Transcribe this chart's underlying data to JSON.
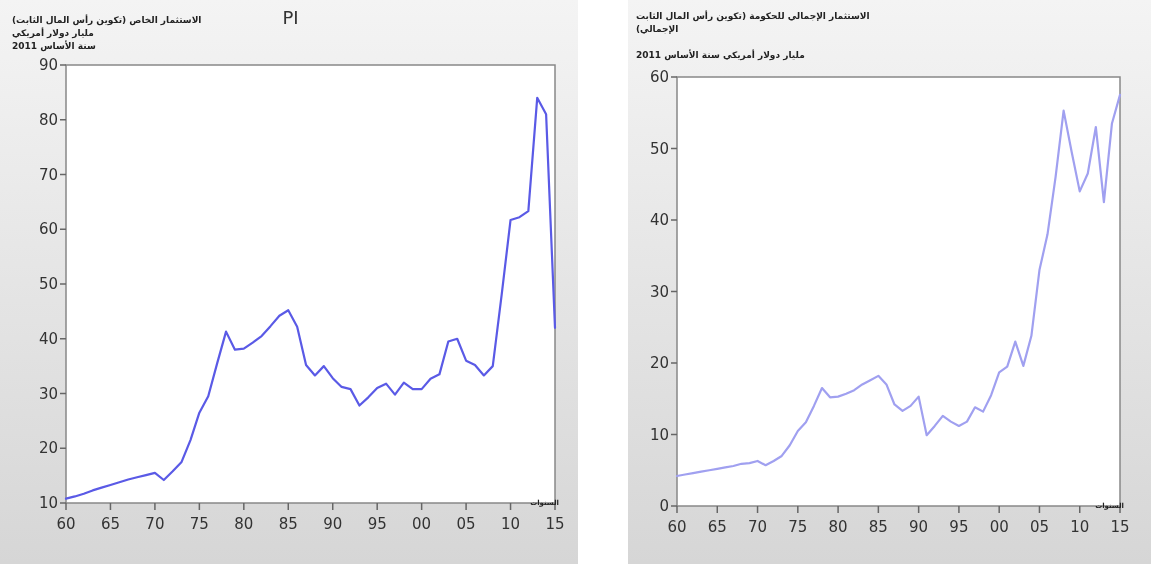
{
  "chart_data": [
    {
      "type": "line",
      "title": "PI",
      "ylabel": "الاستثمار الخاص (تكوين رأس المال الثابت)\nمليار دولار أمريكي\nسنة الأساس 2011",
      "xlabel": "السنوات",
      "x": [
        1960,
        1961,
        1962,
        1963,
        1964,
        1965,
        1966,
        1967,
        1968,
        1969,
        1970,
        1971,
        1972,
        1973,
        1974,
        1975,
        1976,
        1977,
        1978,
        1979,
        1980,
        1981,
        1982,
        1983,
        1984,
        1985,
        1986,
        1987,
        1988,
        1989,
        1990,
        1991,
        1992,
        1993,
        1994,
        1995,
        1996,
        1997,
        1998,
        1999,
        2000,
        2001,
        2002,
        2003,
        2004,
        2005,
        2006,
        2007,
        2008,
        2009,
        2010,
        2011,
        2012,
        2013,
        2014,
        2015
      ],
      "series": [
        {
          "color": "#5a5ae6",
          "values": [
            10.8,
            11.2,
            11.7,
            12.3,
            12.8,
            13.3,
            13.8,
            14.3,
            14.7,
            15.1,
            15.5,
            14.2,
            15.8,
            17.5,
            21.5,
            26.5,
            29.5,
            35.5,
            41.3,
            38,
            38.2,
            39.3,
            40.5,
            42.3,
            44.2,
            45.2,
            42.2,
            35.2,
            33.3,
            35,
            32.8,
            31.2,
            30.8,
            27.8,
            29.3,
            31,
            31.8,
            29.8,
            32,
            30.8,
            30.8,
            32.7,
            33.5,
            39.5,
            40,
            36,
            35.2,
            33.3,
            35,
            48,
            61.7,
            62.2,
            63.3,
            84,
            81,
            42
          ]
        }
      ],
      "xlim": [
        1960,
        2015
      ],
      "xticks": [
        {
          "value": 1960,
          "label": "60"
        },
        {
          "value": 1965,
          "label": "65"
        },
        {
          "value": 1970,
          "label": "70"
        },
        {
          "value": 1975,
          "label": "75"
        },
        {
          "value": 1980,
          "label": "80"
        },
        {
          "value": 1985,
          "label": "85"
        },
        {
          "value": 1990,
          "label": "90"
        },
        {
          "value": 1995,
          "label": "95"
        },
        {
          "value": 2000,
          "label": "00"
        },
        {
          "value": 2005,
          "label": "05"
        },
        {
          "value": 2010,
          "label": "10"
        },
        {
          "value": 2015,
          "label": "15"
        }
      ],
      "ylim": [
        10,
        90
      ],
      "yticks": [
        10,
        20,
        30,
        40,
        50,
        60,
        70,
        80,
        90
      ]
    },
    {
      "type": "line",
      "ylabel": "الاستثمار الإجمالي للحكومة (تكوين رأس المال الثابت\nالإجمالي)\n\nمليار دولار أمريكي سنة الأساس 2011",
      "xlabel": "السنوات",
      "x": [
        1960,
        1961,
        1962,
        1963,
        1964,
        1965,
        1966,
        1967,
        1968,
        1969,
        1970,
        1971,
        1972,
        1973,
        1974,
        1975,
        1976,
        1977,
        1978,
        1979,
        1980,
        1981,
        1982,
        1983,
        1984,
        1985,
        1986,
        1987,
        1988,
        1989,
        1990,
        1991,
        1992,
        1993,
        1994,
        1995,
        1996,
        1997,
        1998,
        1999,
        2000,
        2001,
        2002,
        2003,
        2004,
        2005,
        2006,
        2007,
        2008,
        2009,
        2010,
        2011,
        2012,
        2013,
        2014,
        2015
      ],
      "series": [
        {
          "color": "#a0a0f0",
          "values": [
            4.2,
            4.4,
            4.6,
            4.8,
            5,
            5.2,
            5.4,
            5.6,
            5.9,
            6,
            6.3,
            5.7,
            6.3,
            7,
            8.5,
            10.5,
            11.7,
            14,
            16.5,
            15.2,
            15.3,
            15.7,
            16.2,
            17,
            17.6,
            18.2,
            17,
            14.2,
            13.3,
            14,
            15.3,
            9.9,
            11.2,
            12.6,
            11.8,
            11.2,
            11.8,
            13.8,
            13.2,
            15.5,
            18.7,
            19.5,
            23,
            19.6,
            23.8,
            33,
            38,
            46,
            55.3,
            49.5,
            44,
            46.5,
            53,
            42.5,
            53.5,
            57.5
          ]
        }
      ],
      "xlim": [
        1960,
        2015
      ],
      "xticks": [
        {
          "value": 1960,
          "label": "60"
        },
        {
          "value": 1965,
          "label": "65"
        },
        {
          "value": 1970,
          "label": "70"
        },
        {
          "value": 1975,
          "label": "75"
        },
        {
          "value": 1980,
          "label": "80"
        },
        {
          "value": 1985,
          "label": "85"
        },
        {
          "value": 1990,
          "label": "90"
        },
        {
          "value": 1995,
          "label": "95"
        },
        {
          "value": 2000,
          "label": "00"
        },
        {
          "value": 2005,
          "label": "05"
        },
        {
          "value": 2010,
          "label": "10"
        },
        {
          "value": 2015,
          "label": "15"
        }
      ],
      "ylim": [
        0,
        60
      ],
      "yticks": [
        0,
        10,
        20,
        30,
        40,
        50,
        60
      ]
    }
  ]
}
